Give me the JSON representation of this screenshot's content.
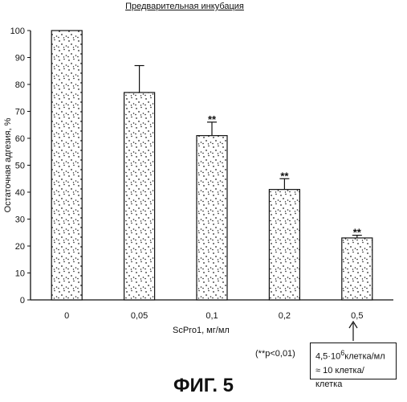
{
  "chart_data": {
    "type": "bar",
    "title": "Предварительная инкубация",
    "xlabel": "ScPro1, мг/мл",
    "ylabel": "Остаточная адгезия, %",
    "categories": [
      "0",
      "0,05",
      "0,1",
      "0,2",
      "0,5"
    ],
    "values": [
      100,
      77,
      61,
      41,
      23
    ],
    "errors": [
      0,
      10,
      5,
      4,
      1
    ],
    "significance": [
      "",
      "",
      "**",
      "**",
      "**"
    ],
    "ylim": [
      0,
      100
    ],
    "yticks": [
      "0",
      "10",
      "20",
      "30",
      "40",
      "50",
      "60",
      "70",
      "80",
      "90",
      "100"
    ],
    "grid": false,
    "bar_fill": "stippled",
    "colors": {
      "bar_border": "#111111",
      "dots": "#222222",
      "background": "#ffffff"
    }
  },
  "annotations": {
    "pvalue_note": "(**p<0,01)",
    "box_line1_prefix": "4,5·10",
    "box_line1_sup": "6",
    "box_line1_suffix": "клетка/мл",
    "box_line2": "≈ 10 клетка/клетка"
  },
  "figure_caption": "ФИГ. 5"
}
